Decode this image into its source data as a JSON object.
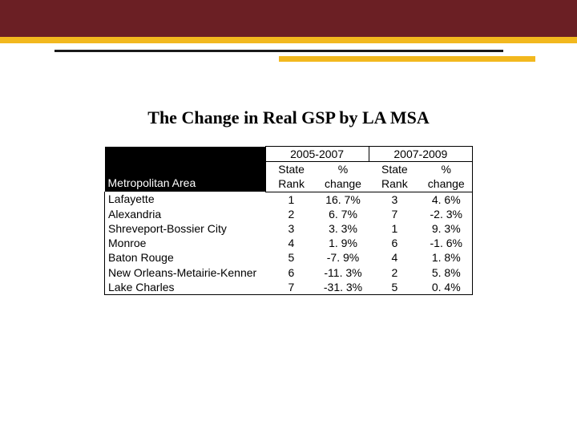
{
  "title": "The Change in Real GSP by LA MSA",
  "colors": {
    "maroon": "#6b1f24",
    "gold": "#f2b81e",
    "black": "#000000",
    "white": "#ffffff"
  },
  "table": {
    "area_header": "Metropolitan Area",
    "periods": [
      "2005-2007",
      "2007-2009"
    ],
    "sub_headers": [
      "State Rank",
      "% change",
      "State Rank",
      "% change"
    ],
    "rows": [
      {
        "area": "Lafayette",
        "r1": "1",
        "c1": "16. 7%",
        "r2": "3",
        "c2": "4. 6%"
      },
      {
        "area": "Alexandria",
        "r1": "2",
        "c1": "6. 7%",
        "r2": "7",
        "c2": "-2. 3%"
      },
      {
        "area": "Shreveport-Bossier City",
        "r1": "3",
        "c1": "3. 3%",
        "r2": "1",
        "c2": "9. 3%"
      },
      {
        "area": "Monroe",
        "r1": "4",
        "c1": "1. 9%",
        "r2": "6",
        "c2": "-1. 6%"
      },
      {
        "area": "Baton Rouge",
        "r1": "5",
        "c1": "-7. 9%",
        "r2": "4",
        "c2": "1. 8%"
      },
      {
        "area": "New Orleans-Metairie-Kenner",
        "r1": "6",
        "c1": "-11. 3%",
        "r2": "2",
        "c2": "5. 8%"
      },
      {
        "area": "Lake Charles",
        "r1": "7",
        "c1": "-31. 3%",
        "r2": "5",
        "c2": "0. 4%"
      }
    ]
  }
}
